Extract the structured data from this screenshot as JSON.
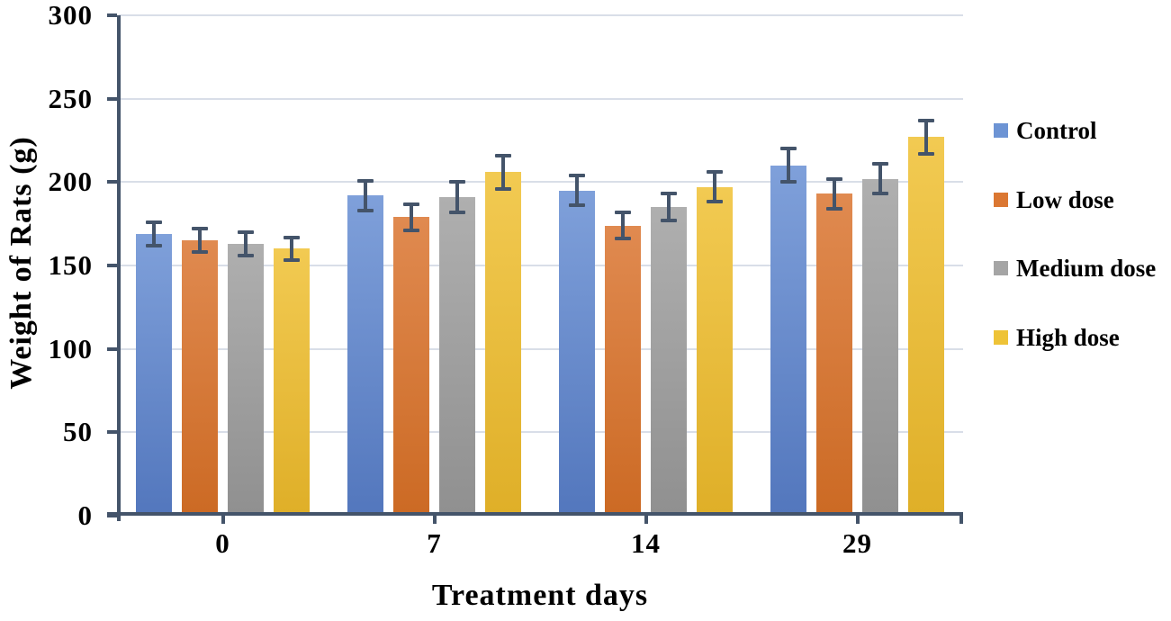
{
  "chart_data": {
    "type": "bar",
    "title": "",
    "xlabel": "Treatment days",
    "ylabel": "Weight of Rats (g)",
    "categories": [
      "0",
      "7",
      "14",
      "29"
    ],
    "series": [
      {
        "name": "Control",
        "values": [
          169,
          192,
          195,
          210
        ],
        "errors": [
          8,
          10,
          10,
          11
        ],
        "color": "#6D94D4",
        "gradient_top": "#7FA0DA",
        "gradient_bottom": "#5377BD"
      },
      {
        "name": "Low dose",
        "values": [
          165,
          179,
          174,
          193
        ],
        "errors": [
          8,
          9,
          9,
          10
        ],
        "color": "#DB7732",
        "gradient_top": "#E08A50",
        "gradient_bottom": "#CC6A24"
      },
      {
        "name": "Medium dose",
        "values": [
          163,
          191,
          185,
          202
        ],
        "errors": [
          8,
          10,
          9,
          10
        ],
        "color": "#A5A5A5",
        "gradient_top": "#AFAFAF",
        "gradient_bottom": "#909090"
      },
      {
        "name": "High dose",
        "values": [
          160,
          206,
          197,
          227
        ],
        "errors": [
          8,
          11,
          10,
          11
        ],
        "color": "#EEC337",
        "gradient_top": "#F2CA52",
        "gradient_bottom": "#DFAF28"
      }
    ],
    "ylim": [
      0,
      300
    ],
    "ytick_step": 50,
    "grid": true,
    "legend_position": "right",
    "error_bars": true,
    "colors": {
      "axis": "#44546A",
      "grid": "#D9DEE8",
      "text": "#000000"
    }
  }
}
